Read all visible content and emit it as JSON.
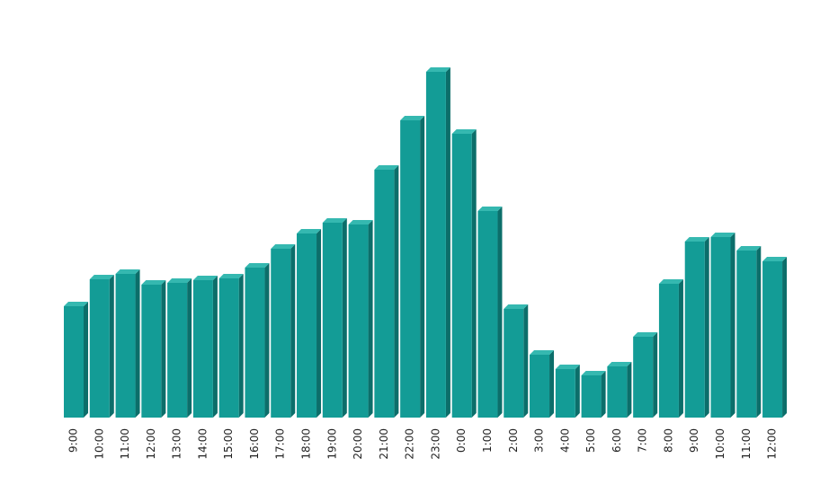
{
  "chart_data": {
    "type": "bar3d",
    "categories": [
      "9:00",
      "10:00",
      "11:00",
      "12:00",
      "13:00",
      "14:00",
      "15:00",
      "16:00",
      "17:00",
      "18:00",
      "19:00",
      "20:00",
      "21:00",
      "22:00",
      "23:00",
      "0:00",
      "1:00",
      "2:00",
      "3:00",
      "4:00",
      "5:00",
      "6:00",
      "7:00",
      "8:00",
      "9:00",
      "10:00",
      "11:00",
      "12:00"
    ],
    "values": [
      124,
      154,
      160,
      148,
      150,
      153,
      155,
      167,
      188,
      205,
      217,
      215,
      276,
      331,
      385,
      316,
      230,
      121,
      70,
      54,
      47,
      57,
      90,
      149,
      196,
      201,
      186,
      174
    ],
    "color": "#139c96",
    "ylim": [
      0,
      400
    ]
  }
}
